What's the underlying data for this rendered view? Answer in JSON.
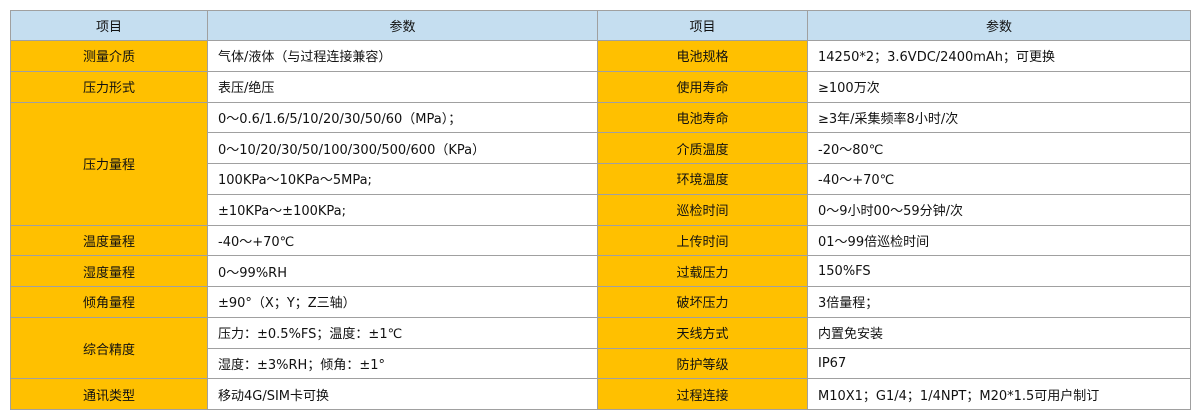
{
  "headers": {
    "item": "项目",
    "param": "参数",
    "item2": "项目",
    "param2": "参数"
  },
  "left": {
    "medium": {
      "label": "测量介质",
      "value": "气体/液体（与过程连接兼容）"
    },
    "pressure_type": {
      "label": "压力形式",
      "value": "表压/绝压"
    },
    "pressure_range": {
      "label": "压力量程",
      "values": [
        "0～0.6/1.6/5/10/20/30/50/60（MPa）；",
        "0～10/20/30/50/100/300/500/600（KPa）",
        "100KPa～10KPa～5MPa;",
        "±10KPa～±100KPa;"
      ]
    },
    "temp_range": {
      "label": "温度量程",
      "value": "-40～+70℃"
    },
    "humidity_range": {
      "label": "湿度量程",
      "value": "0～99%RH"
    },
    "tilt_range": {
      "label": "倾角量程",
      "value": "±90°（X；Y；Z三轴）"
    },
    "accuracy": {
      "label": "综合精度",
      "values": [
        "压力：±0.5%FS；温度：±1℃",
        "湿度：±3%RH；倾角：±1°"
      ]
    },
    "comm": {
      "label": "通讯类型",
      "value": "移动4G/SIM卡可换"
    }
  },
  "right": [
    {
      "label": "电池规格",
      "value": "14250*2；3.6VDC/2400mAh；可更换"
    },
    {
      "label": "使用寿命",
      "value": "≥100万次"
    },
    {
      "label": "电池寿命",
      "value": "≥3年/采集频率8小时/次"
    },
    {
      "label": "介质温度",
      "value": "-20～80℃"
    },
    {
      "label": "环境温度",
      "value": "-40～+70℃"
    },
    {
      "label": "巡检时间",
      "value": "0～9小时00～59分钟/次"
    },
    {
      "label": "上传时间",
      "value": "01～99倍巡检时间"
    },
    {
      "label": "过载压力",
      "value": "150%FS"
    },
    {
      "label": "破坏压力",
      "value": "3倍量程；"
    },
    {
      "label": "天线方式",
      "value": "内置免安装"
    },
    {
      "label": "防护等级",
      "value": "IP67"
    },
    {
      "label": "过程连接",
      "value": "M10X1；G1/4；1/4NPT；M20*1.5可用户制订"
    }
  ],
  "colors": {
    "header_bg": "#c5def0",
    "label_bg": "#ffc000",
    "border": "#a0a0a0"
  }
}
